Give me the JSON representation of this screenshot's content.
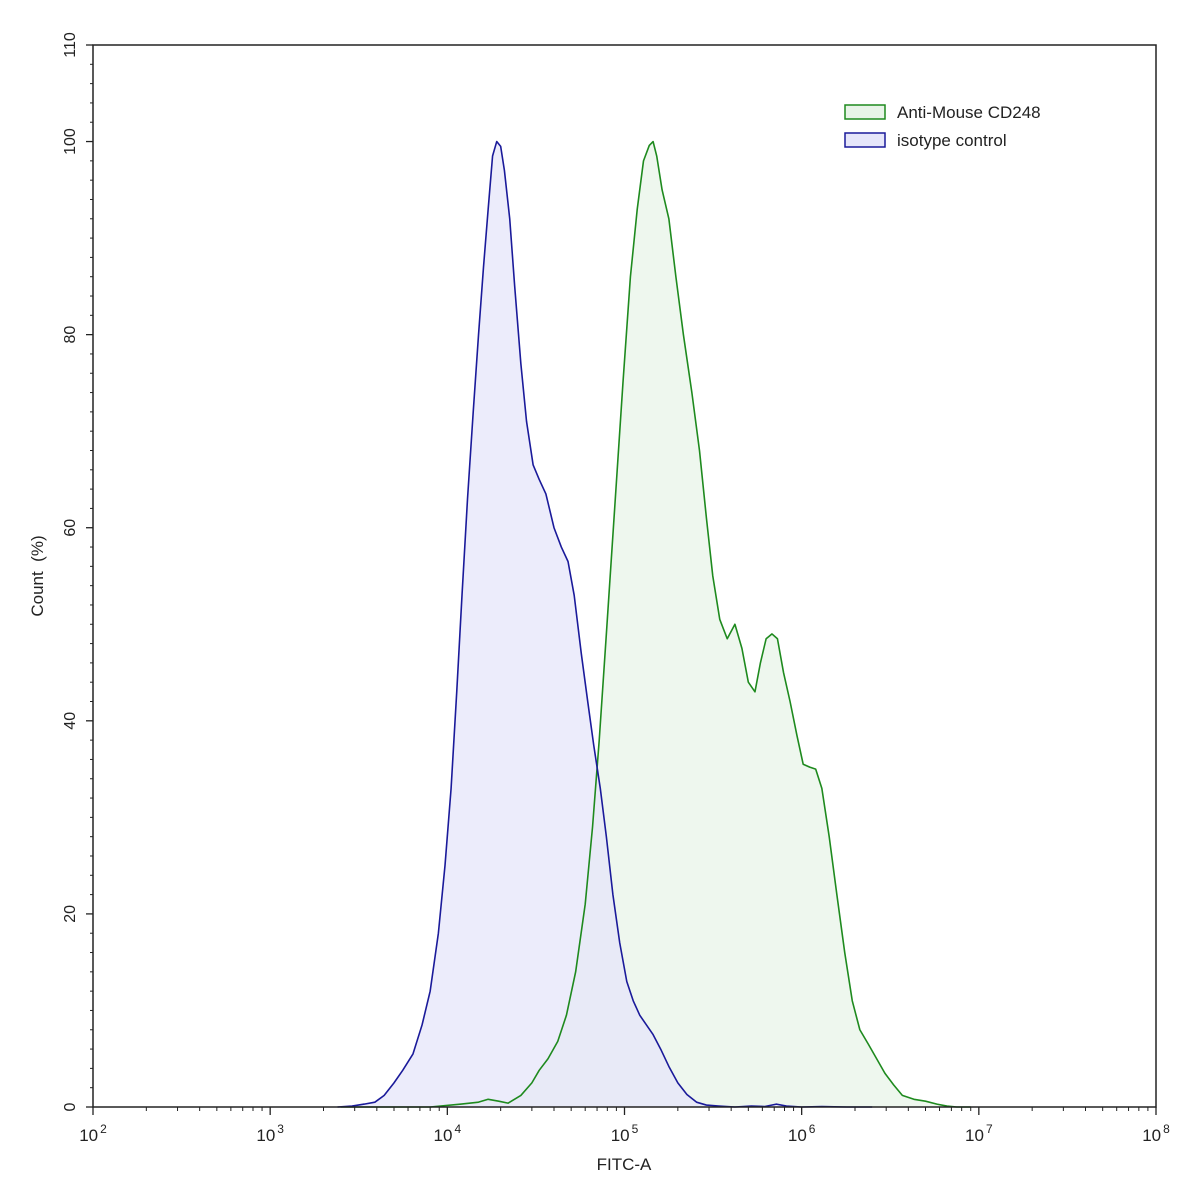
{
  "chart_data": {
    "type": "area",
    "title": "",
    "xlabel": "FITC-A",
    "ylabel": "Count  (%)",
    "x_scale": "log",
    "xlim": [
      100,
      100000000
    ],
    "ylim": [
      0,
      110
    ],
    "x_ticks": [
      {
        "value": 100,
        "base": "10",
        "exp": "2"
      },
      {
        "value": 1000,
        "base": "10",
        "exp": "3"
      },
      {
        "value": 10000,
        "base": "10",
        "exp": "4"
      },
      {
        "value": 100000,
        "base": "10",
        "exp": "5"
      },
      {
        "value": 1000000,
        "base": "10",
        "exp": "6"
      },
      {
        "value": 10000000,
        "base": "10",
        "exp": "7"
      },
      {
        "value": 100000000,
        "base": "10",
        "exp": "8"
      }
    ],
    "y_ticks": [
      "0",
      "20",
      "40",
      "60",
      "80",
      "100",
      "110"
    ],
    "grid": false,
    "legend_position": "top-right",
    "series": [
      {
        "name": "Anti-Mouse CD248",
        "stroke": "#1e8a1e",
        "fill": "#e8f4e8",
        "points": [
          [
            2500,
            0
          ],
          [
            8000,
            0
          ],
          [
            12000,
            0.3
          ],
          [
            15000,
            0.5
          ],
          [
            17000,
            0.8
          ],
          [
            19500,
            0.6
          ],
          [
            22000,
            0.4
          ],
          [
            26000,
            1.2
          ],
          [
            30000,
            2.5
          ],
          [
            33000,
            3.8
          ],
          [
            37000,
            5.0
          ],
          [
            42000,
            6.8
          ],
          [
            47000,
            9.5
          ],
          [
            53000,
            14
          ],
          [
            60000,
            21
          ],
          [
            66000,
            29
          ],
          [
            72000,
            38
          ],
          [
            79000,
            49
          ],
          [
            88000,
            62
          ],
          [
            98000,
            75
          ],
          [
            108000,
            86
          ],
          [
            118000,
            93
          ],
          [
            128000,
            98
          ],
          [
            138000,
            99.6
          ],
          [
            145000,
            100
          ],
          [
            152000,
            98.5
          ],
          [
            163000,
            95
          ],
          [
            178000,
            92
          ],
          [
            195000,
            86
          ],
          [
            215000,
            80
          ],
          [
            240000,
            74
          ],
          [
            265000,
            68
          ],
          [
            290000,
            61
          ],
          [
            315000,
            55
          ],
          [
            345000,
            50.5
          ],
          [
            380000,
            48.5
          ],
          [
            420000,
            50
          ],
          [
            460000,
            47.5
          ],
          [
            500000,
            44
          ],
          [
            545000,
            43
          ],
          [
            585000,
            46
          ],
          [
            630000,
            48.5
          ],
          [
            680000,
            49
          ],
          [
            730000,
            48.5
          ],
          [
            790000,
            45
          ],
          [
            860000,
            42
          ],
          [
            940000,
            38.5
          ],
          [
            1020000,
            35.5
          ],
          [
            1110000,
            35.2
          ],
          [
            1200000,
            35
          ],
          [
            1300000,
            33
          ],
          [
            1430000,
            28
          ],
          [
            1580000,
            22
          ],
          [
            1750000,
            16
          ],
          [
            1930000,
            11
          ],
          [
            2130000,
            8
          ],
          [
            2380000,
            6.5
          ],
          [
            2650000,
            5
          ],
          [
            2950000,
            3.5
          ],
          [
            3300000,
            2.3
          ],
          [
            3700000,
            1.2
          ],
          [
            4300000,
            0.8
          ],
          [
            5000000,
            0.6
          ],
          [
            5800000,
            0.3
          ],
          [
            6600000,
            0.1
          ],
          [
            7500000,
            0
          ],
          [
            9000000,
            0
          ]
        ]
      },
      {
        "name": "isotype control",
        "stroke": "#1a1a9a",
        "fill": "#e6e6fa",
        "points": [
          [
            2400,
            0
          ],
          [
            2900,
            0.1
          ],
          [
            3400,
            0.3
          ],
          [
            3900,
            0.5
          ],
          [
            4400,
            1.2
          ],
          [
            5000,
            2.5
          ],
          [
            5600,
            3.8
          ],
          [
            6400,
            5.5
          ],
          [
            7200,
            8.5
          ],
          [
            8000,
            12
          ],
          [
            8900,
            18
          ],
          [
            9700,
            25
          ],
          [
            10500,
            33
          ],
          [
            11300,
            43
          ],
          [
            12100,
            53
          ],
          [
            13000,
            63
          ],
          [
            14000,
            72
          ],
          [
            15000,
            80
          ],
          [
            16000,
            87
          ],
          [
            17000,
            93
          ],
          [
            18000,
            98.5
          ],
          [
            19000,
            100
          ],
          [
            20000,
            99.5
          ],
          [
            21000,
            97
          ],
          [
            22500,
            92
          ],
          [
            24000,
            85
          ],
          [
            26000,
            77
          ],
          [
            28000,
            71
          ],
          [
            30500,
            66.5
          ],
          [
            33000,
            65
          ],
          [
            36000,
            63.5
          ],
          [
            40000,
            60
          ],
          [
            44000,
            58
          ],
          [
            48000,
            56.5
          ],
          [
            52000,
            53
          ],
          [
            57000,
            47
          ],
          [
            62000,
            42
          ],
          [
            67000,
            37.5
          ],
          [
            73000,
            33
          ],
          [
            79000,
            28
          ],
          [
            86000,
            22
          ],
          [
            94000,
            17
          ],
          [
            103000,
            13
          ],
          [
            112000,
            11
          ],
          [
            122000,
            9.5
          ],
          [
            133000,
            8.5
          ],
          [
            145000,
            7.5
          ],
          [
            160000,
            6
          ],
          [
            178000,
            4.2
          ],
          [
            200000,
            2.5
          ],
          [
            225000,
            1.3
          ],
          [
            255000,
            0.5
          ],
          [
            290000,
            0.2
          ],
          [
            340000,
            0.1
          ],
          [
            420000,
            0
          ],
          [
            520000,
            0.1
          ],
          [
            620000,
            0.05
          ],
          [
            720000,
            0.3
          ],
          [
            820000,
            0.1
          ],
          [
            1000000,
            0
          ],
          [
            1300000,
            0.05
          ],
          [
            1800000,
            0
          ],
          [
            2500000,
            0
          ]
        ]
      }
    ]
  }
}
